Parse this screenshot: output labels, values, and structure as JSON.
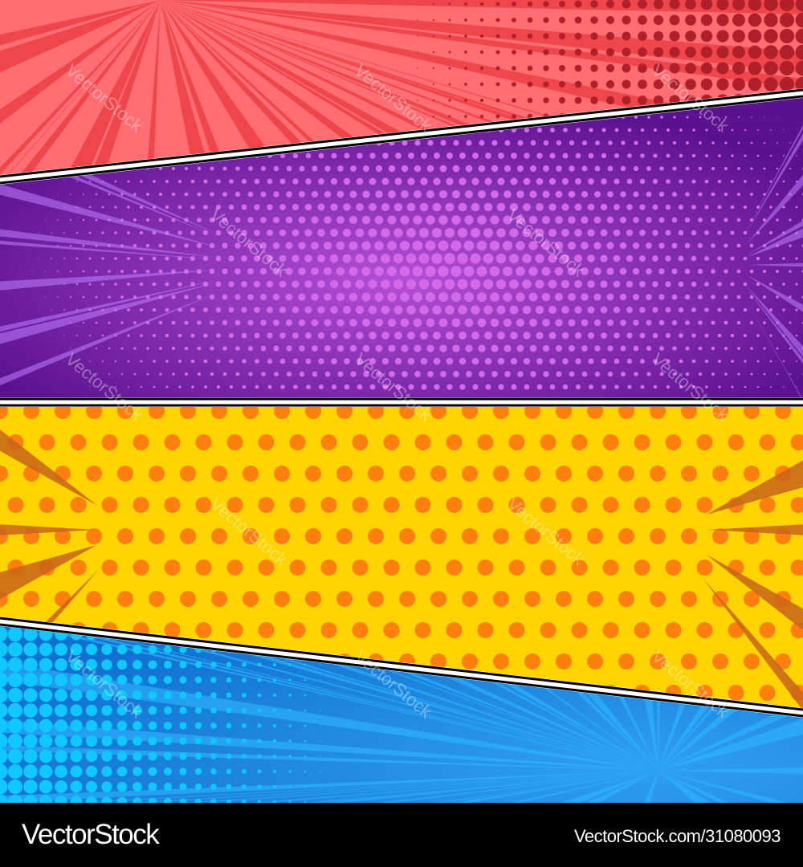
{
  "footer": {
    "brand": "VectorStock",
    "image_ref": "VectorStock.com/31080093"
  },
  "watermark": "VectorStock",
  "panels": [
    {
      "name": "red",
      "base": "#ff6e73",
      "accent": "#e8353a",
      "dots": "#b0202a"
    },
    {
      "name": "purple",
      "base": "#6a1aa0",
      "accent": "#e47af2",
      "dots": "#d46ae8"
    },
    {
      "name": "yellow",
      "base": "#ffd400",
      "accent": "#f0781a",
      "dots": "#ff7f0f"
    },
    {
      "name": "blue",
      "base": "#1a8ae0",
      "accent": "#1fd0ff",
      "dots": "#10c8ff"
    }
  ]
}
